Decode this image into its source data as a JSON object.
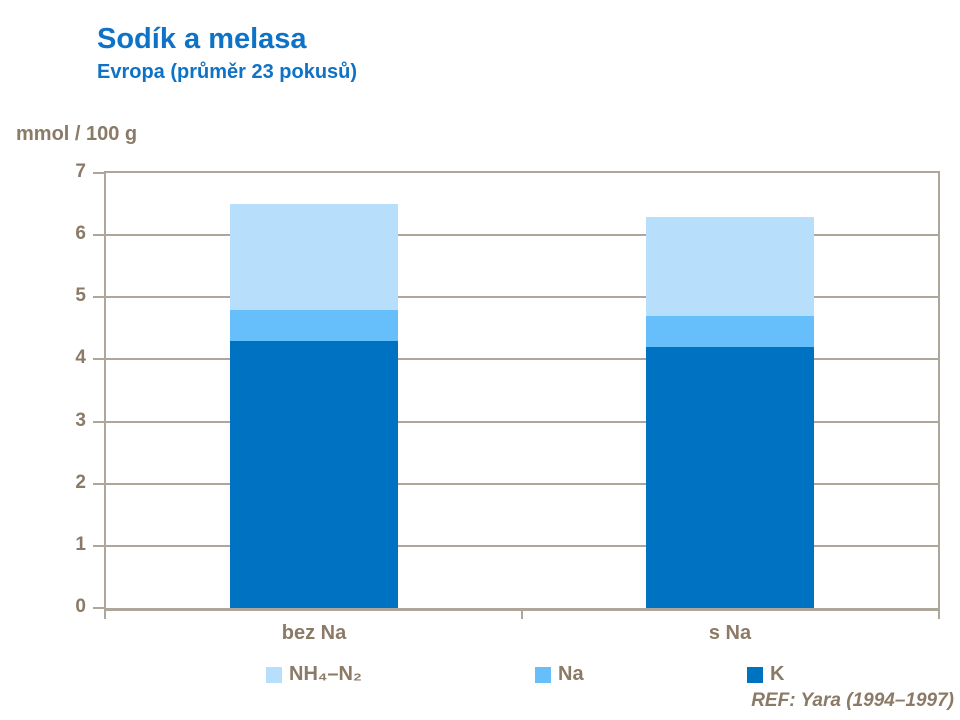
{
  "header": {
    "title": "Sodík a melasa",
    "subtitle": "Evropa (průměr 23 pokusů)"
  },
  "axis_title": "mmol / 100 g",
  "footer": {
    "ref": "REF: Yara (1994–1997)"
  },
  "colors": {
    "title_blue": "#0E72C6",
    "text_brown": "#8A7A66",
    "axis_line": "#AFA69B",
    "k_dark_blue": "#0072C2",
    "na_medium_blue": "#66BEFA",
    "nh4_light_blue": "#B7DEFB"
  },
  "chart_data": {
    "type": "bar",
    "stacked": true,
    "title": "Sodík a melasa",
    "subtitle": "Evropa (průměr 23 pokusů)",
    "ylabel": "mmol / 100 g",
    "xlabel": "",
    "categories": [
      "bez Na",
      "s Na"
    ],
    "series": [
      {
        "name": "K",
        "color": "#0072C2",
        "values": [
          4.3,
          4.2
        ]
      },
      {
        "name": "Na",
        "color": "#66BEFA",
        "values": [
          0.5,
          0.5
        ]
      },
      {
        "name": "NH₄–N₂",
        "color": "#B7DEFB",
        "values": [
          1.7,
          1.6
        ]
      }
    ],
    "totals": [
      6.5,
      6.3
    ],
    "ylim": [
      0,
      7
    ],
    "yticks": [
      0,
      1,
      2,
      3,
      4,
      5,
      6,
      7
    ],
    "grid": true,
    "legend_position": "bottom",
    "legend": [
      {
        "label": "NH₄–N₂",
        "color": "#B7DEFB"
      },
      {
        "label": "Na",
        "color": "#66BEFA"
      },
      {
        "label": "K",
        "color": "#0072C2"
      }
    ]
  }
}
